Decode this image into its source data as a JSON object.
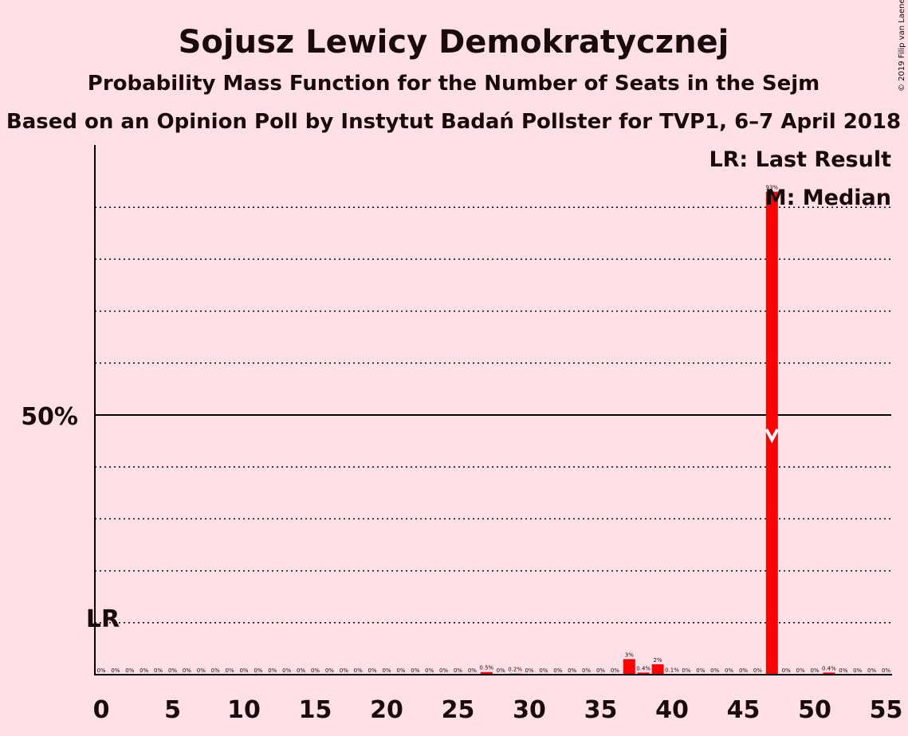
{
  "chart_data": {
    "type": "bar",
    "title": "Sojusz Lewicy Demokratycznej",
    "subtitle": "Probability Mass Function for the Number of Seats in the Sejm",
    "subtitle2": "Based on an Opinion Poll by Instytut Badań Pollster for TVP1, 6–7 April 2018",
    "copyright": "© 2019 Filip van Laenen",
    "y_tick_label": "50%",
    "x_tick_labels": [
      "0",
      "5",
      "10",
      "15",
      "20",
      "25",
      "30",
      "35",
      "40",
      "45",
      "50",
      "55"
    ],
    "x_ticks": [
      0,
      5,
      10,
      15,
      20,
      25,
      30,
      35,
      40,
      45,
      50,
      55
    ],
    "categories": [
      0,
      1,
      2,
      3,
      4,
      5,
      6,
      7,
      8,
      9,
      10,
      11,
      12,
      13,
      14,
      15,
      16,
      17,
      18,
      19,
      20,
      21,
      22,
      23,
      24,
      25,
      26,
      27,
      28,
      29,
      30,
      31,
      32,
      33,
      34,
      35,
      36,
      37,
      38,
      39,
      40,
      41,
      42,
      43,
      44,
      45,
      46,
      47,
      48,
      49,
      50,
      51,
      52,
      53,
      54,
      55
    ],
    "values": [
      0,
      0,
      0,
      0,
      0,
      0,
      0,
      0,
      0,
      0,
      0,
      0,
      0,
      0,
      0,
      0,
      0,
      0,
      0,
      0,
      0,
      0,
      0,
      0,
      0,
      0,
      0,
      0.5,
      0,
      0.2,
      0,
      0,
      0,
      0,
      0,
      0,
      0,
      3,
      0.4,
      2,
      0.1,
      0,
      0,
      0,
      0,
      0,
      0,
      93,
      0,
      0,
      0,
      0.4,
      0,
      0,
      0,
      0
    ],
    "value_labels": [
      "0%",
      "0%",
      "0%",
      "0%",
      "0%",
      "0%",
      "0%",
      "0%",
      "0%",
      "0%",
      "0%",
      "0%",
      "0%",
      "0%",
      "0%",
      "0%",
      "0%",
      "0%",
      "0%",
      "0%",
      "0%",
      "0%",
      "0%",
      "0%",
      "0%",
      "0%",
      "0%",
      "0.5%",
      "0%",
      "0.2%",
      "0%",
      "0%",
      "0%",
      "0%",
      "0%",
      "0%",
      "0%",
      "3%",
      "0.4%",
      "2%",
      "0.1%",
      "0%",
      "0%",
      "0%",
      "0%",
      "0%",
      "0%",
      "93%",
      "0%",
      "0%",
      "0%",
      "0.4%",
      "0%",
      "0%",
      "0%",
      "0%"
    ],
    "ylim": [
      0,
      100
    ],
    "gridlines": [
      10,
      20,
      30,
      40,
      60,
      70,
      80,
      90
    ],
    "majority_line": 50,
    "last_result": 0,
    "last_result_label": "LR",
    "median": 47,
    "legend": [
      "LR: Last Result",
      "M: Median"
    ],
    "legend_position": "top-right",
    "colors": {
      "background": "#ffe0e6",
      "bar": "#ff0000",
      "text": "#1a0a0a",
      "median_marker": "#ffffff"
    }
  }
}
